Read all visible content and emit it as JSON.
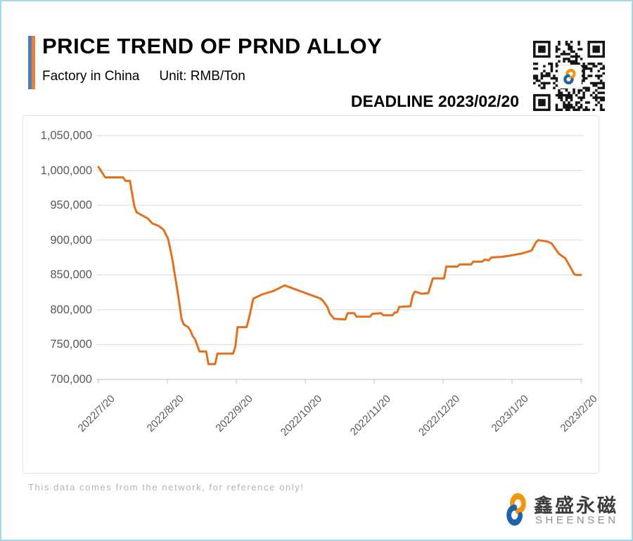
{
  "header": {
    "title": "PRICE TREND OF PRND ALLOY",
    "subtitle_left": "Factory in China",
    "subtitle_right": "Unit: RMB/Ton",
    "deadline": "DEADLINE 2023/02/20"
  },
  "colors": {
    "accent_blue": "#4a7ebc",
    "accent_orange": "#e87f35",
    "line_orange": "#e2711d",
    "page_border": "#a4d7ea",
    "gridline": "#dadada",
    "axis_text": "#595959"
  },
  "chart_data": {
    "type": "line",
    "title": "PRICE TREND OF PRND ALLOY",
    "xlabel": "",
    "ylabel": "RMB/Ton",
    "ylim": [
      700000,
      1050000
    ],
    "grid": "horizontal",
    "legend": "none",
    "x_axis_label_rotation": -45,
    "line_color": "#e2711d",
    "y_ticks": [
      1050000,
      1000000,
      950000,
      900000,
      850000,
      800000,
      750000,
      700000
    ],
    "y_tick_labels": [
      "1,050,000",
      "1,000,000",
      "950,000",
      "900,000",
      "850,000",
      "800,000",
      "750,000",
      "700,000"
    ],
    "x_tick_labels": [
      "2022/7/20",
      "2022/8/20",
      "2022/9/20",
      "2022/10/20",
      "2022/11/20",
      "2022/12/20",
      "2023/1/20",
      "2023/2/20"
    ],
    "x": [
      "2022/7/20",
      "2022/7/23",
      "2022/7/31",
      "2022/8/1",
      "2022/8/3",
      "2022/8/5",
      "2022/8/6",
      "2022/8/11",
      "2022/8/13",
      "2022/8/16",
      "2022/8/18",
      "2022/8/20",
      "2022/8/21",
      "2022/8/22",
      "2022/8/23",
      "2022/8/24",
      "2022/8/25",
      "2022/8/26",
      "2022/8/27",
      "2022/8/29",
      "2022/8/30",
      "2022/8/31",
      "2022/9/1",
      "2022/9/3",
      "2022/9/6",
      "2022/9/7",
      "2022/9/10",
      "2022/9/11",
      "2022/9/18",
      "2022/9/19",
      "2022/9/20",
      "2022/9/24",
      "2022/9/25",
      "2022/9/27",
      "2022/10/1",
      "2022/10/6",
      "2022/10/11",
      "2022/10/27",
      "2022/10/28",
      "2022/10/30",
      "2022/10/31",
      "2022/11/2",
      "2022/11/7",
      "2022/11/8",
      "2022/11/11",
      "2022/11/12",
      "2022/11/18",
      "2022/11/19",
      "2022/11/23",
      "2022/11/24",
      "2022/11/28",
      "2022/11/29",
      "2022/11/30",
      "2022/12/1",
      "2022/12/6",
      "2022/12/7",
      "2022/12/8",
      "2022/12/11",
      "2022/12/14",
      "2022/12/16",
      "2022/12/21",
      "2022/12/22",
      "2022/12/27",
      "2022/12/28",
      "2023/1/2",
      "2023/1/3",
      "2023/1/7",
      "2023/1/8",
      "2023/1/10",
      "2023/1/11",
      "2023/1/16",
      "2023/1/20",
      "2023/1/25",
      "2023/1/29",
      "2023/1/31",
      "2023/2/1",
      "2023/2/5",
      "2023/2/7",
      "2023/2/10",
      "2023/2/12",
      "2023/2/13",
      "2023/2/16",
      "2023/2/17",
      "2023/2/18",
      "2023/2/20"
    ],
    "values": [
      1005000,
      990000,
      990000,
      985000,
      985000,
      948000,
      940000,
      931000,
      924000,
      920000,
      915000,
      902000,
      887000,
      871000,
      851000,
      831000,
      810000,
      787000,
      779000,
      775000,
      770000,
      762000,
      758000,
      740000,
      740000,
      722000,
      722000,
      737000,
      737000,
      747000,
      775000,
      775000,
      787000,
      816000,
      822000,
      827000,
      835000,
      816000,
      813000,
      804000,
      795000,
      787000,
      786000,
      795000,
      795000,
      790000,
      790000,
      794000,
      795000,
      792000,
      792000,
      796000,
      796000,
      804000,
      805000,
      820000,
      826000,
      823000,
      824000,
      845000,
      845000,
      862000,
      862000,
      865000,
      865000,
      869000,
      869000,
      872000,
      871000,
      875000,
      876000,
      878000,
      881000,
      885000,
      897000,
      900000,
      898000,
      895000,
      881000,
      876000,
      874000,
      857000,
      851000,
      850000,
      850000
    ]
  },
  "footer": {
    "disclaimer": "This data comes from the network, for reference only!"
  },
  "logo": {
    "cn": "鑫盛永磁",
    "en": "SHEENSEN"
  }
}
